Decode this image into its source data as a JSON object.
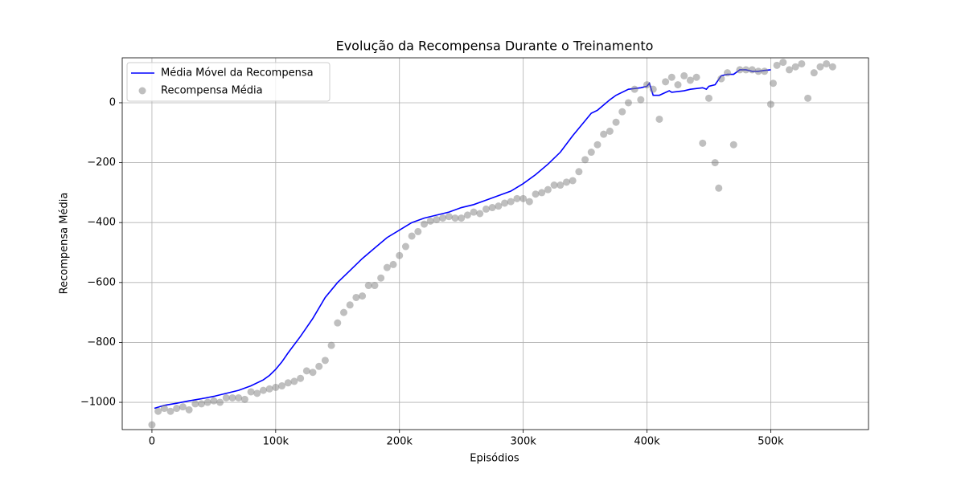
{
  "chart_data": {
    "type": "line",
    "title": "Evolução da Recompensa Durante o Treinamento",
    "xlabel": "Episódios",
    "ylabel": "Recompensa Média",
    "xlim": [
      -24000,
      579000
    ],
    "ylim": [
      -1091,
      150
    ],
    "xticks": [
      0,
      {
        "value": 100000,
        "label": "100k"
      },
      {
        "value": 200000,
        "label": "200k"
      },
      {
        "value": 300000,
        "label": "300k"
      },
      {
        "value": 400000,
        "label": "400k"
      },
      {
        "value": 500000,
        "label": "500k"
      }
    ],
    "yticks": [
      {
        "value": -1000,
        "label": "−1000"
      },
      {
        "value": -800,
        "label": "−800"
      },
      {
        "value": -600,
        "label": "−600"
      },
      {
        "value": -400,
        "label": "−400"
      },
      {
        "value": -200,
        "label": "−200"
      },
      0
    ],
    "grid": true,
    "legend": "upper left",
    "series": [
      {
        "name": "Média Móvel da Recompensa",
        "type": "line",
        "color": "#0000ff",
        "x": [
          2000,
          10000,
          20000,
          30000,
          40000,
          50000,
          60000,
          70000,
          80000,
          90000,
          95000,
          100000,
          105000,
          110000,
          120000,
          130000,
          140000,
          150000,
          160000,
          170000,
          180000,
          190000,
          200000,
          210000,
          220000,
          230000,
          240000,
          250000,
          260000,
          270000,
          280000,
          290000,
          300000,
          310000,
          320000,
          330000,
          340000,
          350000,
          355000,
          360000,
          370000,
          375000,
          385000,
          395000,
          400000,
          402000,
          405000,
          410000,
          418000,
          420000,
          430000,
          435000,
          445000,
          448000,
          450000,
          455000,
          460000,
          465000,
          470000,
          475000,
          480000,
          485000,
          490000,
          495000,
          500000
        ],
        "values": [
          -1020,
          -1010,
          -1003,
          -995,
          -988,
          -980,
          -970,
          -960,
          -945,
          -925,
          -910,
          -890,
          -865,
          -835,
          -780,
          -720,
          -650,
          -600,
          -560,
          -520,
          -485,
          -450,
          -425,
          -400,
          -385,
          -375,
          -365,
          -350,
          -340,
          -325,
          -310,
          -295,
          -270,
          -240,
          -205,
          -165,
          -110,
          -60,
          -35,
          -25,
          10,
          25,
          45,
          50,
          55,
          65,
          25,
          25,
          40,
          35,
          40,
          45,
          50,
          45,
          55,
          60,
          90,
          95,
          95,
          110,
          110,
          105,
          105,
          108,
          110
        ]
      },
      {
        "name": "Recompensa Média",
        "type": "scatter",
        "color": "#808080",
        "x": [
          0,
          5000,
          10000,
          15000,
          20000,
          25000,
          30000,
          35000,
          40000,
          45000,
          50000,
          55000,
          60000,
          65000,
          70000,
          75000,
          80000,
          85000,
          90000,
          95000,
          100000,
          105000,
          110000,
          115000,
          120000,
          125000,
          130000,
          135000,
          140000,
          145000,
          150000,
          155000,
          160000,
          165000,
          170000,
          175000,
          180000,
          185000,
          190000,
          195000,
          200000,
          205000,
          210000,
          215000,
          220000,
          225000,
          230000,
          235000,
          240000,
          245000,
          250000,
          255000,
          260000,
          265000,
          270000,
          275000,
          280000,
          285000,
          290000,
          295000,
          300000,
          305000,
          310000,
          315000,
          320000,
          325000,
          330000,
          335000,
          340000,
          345000,
          350000,
          355000,
          360000,
          365000,
          370000,
          375000,
          380000,
          385000,
          390000,
          395000,
          400000,
          405000,
          410000,
          415000,
          420000,
          425000,
          430000,
          435000,
          440000,
          445000,
          450000,
          455000,
          458000,
          460000,
          465000,
          470000,
          475000,
          480000,
          485000,
          490000,
          495000,
          500000,
          502000,
          505000,
          510000,
          515000,
          520000,
          525000,
          530000,
          535000,
          540000,
          545000,
          550000
        ],
        "values": [
          -1075,
          -1030,
          -1020,
          -1030,
          -1020,
          -1015,
          -1025,
          -1005,
          -1005,
          -1000,
          -995,
          -1000,
          -985,
          -985,
          -985,
          -990,
          -965,
          -970,
          -960,
          -955,
          -950,
          -945,
          -935,
          -930,
          -920,
          -895,
          -900,
          -880,
          -860,
          -810,
          -735,
          -700,
          -675,
          -650,
          -645,
          -610,
          -610,
          -585,
          -550,
          -540,
          -510,
          -480,
          -445,
          -430,
          -405,
          -395,
          -390,
          -385,
          -380,
          -385,
          -385,
          -375,
          -365,
          -370,
          -355,
          -350,
          -345,
          -335,
          -330,
          -320,
          -320,
          -330,
          -305,
          -300,
          -290,
          -275,
          -275,
          -265,
          -260,
          -230,
          -190,
          -165,
          -140,
          -105,
          -95,
          -65,
          -30,
          0,
          45,
          10,
          60,
          45,
          -55,
          70,
          85,
          60,
          90,
          75,
          85,
          -135,
          15,
          -200,
          -285,
          80,
          100,
          -140,
          110,
          110,
          110,
          105,
          105,
          -5,
          65,
          125,
          135,
          110,
          120,
          130,
          15,
          100,
          120,
          130,
          120
        ]
      }
    ]
  }
}
